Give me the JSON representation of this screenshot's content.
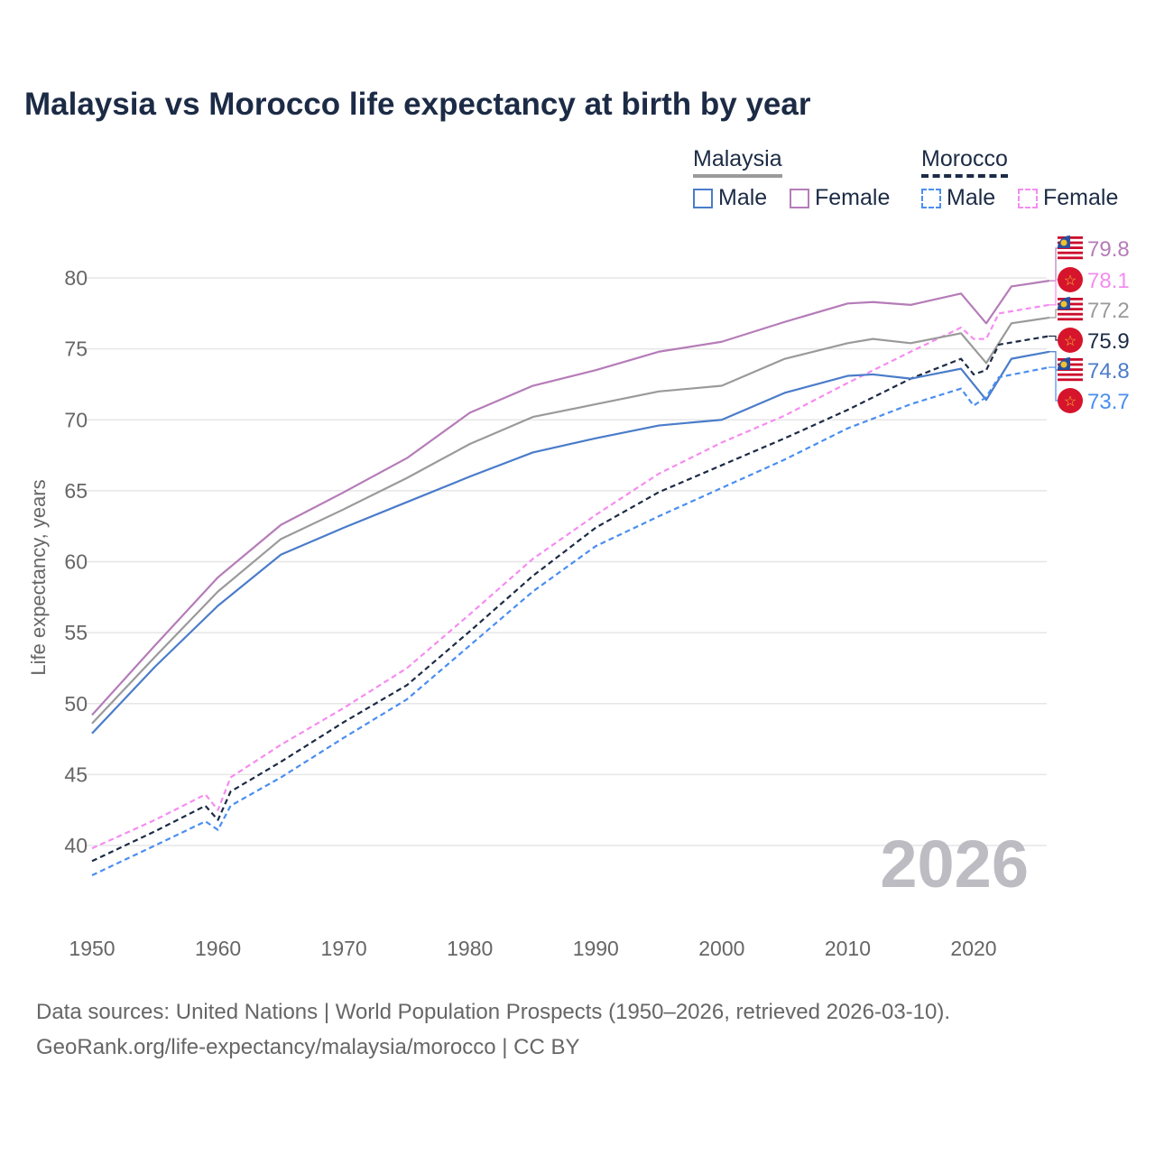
{
  "title": "Malaysia vs Morocco life expectancy at birth by year",
  "legend": {
    "malaysia": "Malaysia",
    "morocco": "Morocco",
    "male": "Male",
    "female": "Female"
  },
  "watermark_year": "2026",
  "footer": {
    "line1": "Data sources: United Nations | World Population Prospects (1950–2026, retrieved 2026-03-10).",
    "line2": "GeoRank.org/life-expectancy/malaysia/morocco | CC BY"
  },
  "chart_data": {
    "type": "line",
    "title": "Malaysia vs Morocco life expectancy at birth by year",
    "xlabel": "",
    "ylabel": "Life expectancy, years",
    "xlim": [
      1950,
      2026
    ],
    "ylim": [
      35,
      83
    ],
    "xticks": [
      1950,
      1960,
      1970,
      1980,
      1990,
      2000,
      2010,
      2020
    ],
    "yticks": [
      40,
      45,
      50,
      55,
      60,
      65,
      70,
      75,
      80
    ],
    "grid": true,
    "legend_position": "top-right",
    "series": [
      {
        "name": "Malaysia Female",
        "country": "Malaysia",
        "color": "#b57cb8",
        "dashed": false,
        "end_label": "79.8",
        "flag": "malaysia",
        "x": [
          1950,
          1955,
          1960,
          1965,
          1970,
          1975,
          1980,
          1985,
          1990,
          1995,
          2000,
          2005,
          2010,
          2012,
          2015,
          2019,
          2021,
          2023,
          2026
        ],
        "y": [
          49.2,
          54.1,
          58.9,
          62.6,
          64.9,
          67.3,
          70.5,
          72.4,
          73.5,
          74.8,
          75.5,
          76.9,
          78.2,
          78.3,
          78.1,
          78.9,
          76.8,
          79.4,
          79.8
        ]
      },
      {
        "name": "Morocco Female",
        "country": "Morocco",
        "color": "#f58cf0",
        "dashed": true,
        "end_label": "78.1",
        "flag": "morocco",
        "x": [
          1950,
          1955,
          1959,
          1960,
          1961,
          1965,
          1970,
          1975,
          1980,
          1985,
          1990,
          1995,
          2000,
          2005,
          2010,
          2015,
          2019,
          2020,
          2021,
          2022,
          2026
        ],
        "y": [
          39.8,
          41.8,
          43.6,
          42.5,
          44.8,
          47.1,
          49.7,
          52.5,
          56.3,
          60.2,
          63.3,
          66.2,
          68.4,
          70.3,
          72.6,
          74.8,
          76.5,
          75.7,
          75.7,
          77.5,
          78.1
        ]
      },
      {
        "name": "Malaysia Total",
        "country": "Malaysia",
        "color": "#9a9a9a",
        "dashed": false,
        "end_label": "77.2",
        "flag": "malaysia",
        "x": [
          1950,
          1955,
          1960,
          1965,
          1970,
          1975,
          1980,
          1985,
          1990,
          1995,
          2000,
          2005,
          2010,
          2012,
          2015,
          2019,
          2021,
          2023,
          2026
        ],
        "y": [
          48.6,
          53.3,
          57.9,
          61.6,
          63.7,
          65.9,
          68.3,
          70.2,
          71.1,
          72.0,
          72.4,
          74.3,
          75.4,
          75.7,
          75.4,
          76.1,
          74.0,
          76.8,
          77.2
        ]
      },
      {
        "name": "Morocco Total",
        "country": "Morocco",
        "color": "#1c2b45",
        "dashed": true,
        "end_label": "75.9",
        "flag": "morocco",
        "x": [
          1950,
          1955,
          1959,
          1960,
          1961,
          1965,
          1970,
          1975,
          1980,
          1985,
          1990,
          1995,
          2000,
          2005,
          2010,
          2015,
          2019,
          2020,
          2021,
          2022,
          2026
        ],
        "y": [
          38.9,
          41.0,
          42.8,
          41.8,
          43.8,
          45.9,
          48.7,
          51.3,
          55.1,
          59.0,
          62.4,
          64.9,
          66.8,
          68.7,
          70.7,
          72.9,
          74.3,
          73.2,
          73.5,
          75.3,
          75.9
        ]
      },
      {
        "name": "Malaysia Male",
        "country": "Malaysia",
        "color": "#4a7cc9",
        "dashed": false,
        "end_label": "74.8",
        "flag": "malaysia",
        "x": [
          1950,
          1955,
          1960,
          1965,
          1970,
          1975,
          1980,
          1985,
          1990,
          1995,
          2000,
          2005,
          2010,
          2012,
          2015,
          2019,
          2021,
          2023,
          2026
        ],
        "y": [
          47.9,
          52.6,
          56.9,
          60.5,
          62.4,
          64.2,
          66.0,
          67.7,
          68.7,
          69.6,
          70.0,
          71.9,
          73.1,
          73.2,
          72.9,
          73.6,
          71.4,
          74.3,
          74.8
        ]
      },
      {
        "name": "Morocco Male",
        "country": "Morocco",
        "color": "#4a8ef0",
        "dashed": true,
        "end_label": "73.7",
        "flag": "morocco",
        "x": [
          1950,
          1955,
          1959,
          1960,
          1961,
          1965,
          1970,
          1975,
          1980,
          1985,
          1990,
          1995,
          2000,
          2005,
          2010,
          2015,
          2019,
          2020,
          2021,
          2022,
          2026
        ],
        "y": [
          37.9,
          40.0,
          41.7,
          41.1,
          42.8,
          44.8,
          47.6,
          50.3,
          54.1,
          57.9,
          61.1,
          63.2,
          65.2,
          67.2,
          69.4,
          71.1,
          72.2,
          71.0,
          71.6,
          73.0,
          73.7
        ]
      }
    ]
  }
}
